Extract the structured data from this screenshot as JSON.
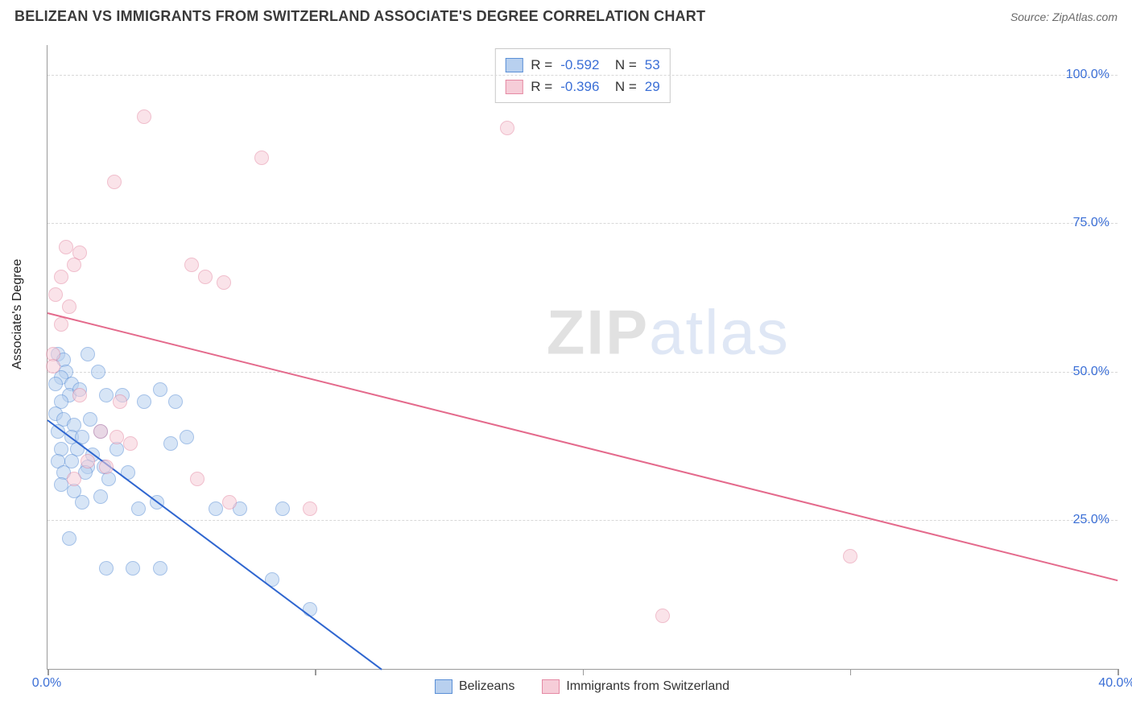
{
  "header": {
    "title": "BELIZEAN VS IMMIGRANTS FROM SWITZERLAND ASSOCIATE'S DEGREE CORRELATION CHART",
    "source": "Source: ZipAtlas.com"
  },
  "watermark": {
    "z": "ZIP",
    "rest": "atlas"
  },
  "chart": {
    "type": "scatter",
    "y_axis_title": "Associate's Degree",
    "xlim": [
      0,
      40
    ],
    "ylim": [
      0,
      105
    ],
    "x_ticks": [
      0,
      10,
      20,
      30,
      40
    ],
    "x_tick_labels": [
      "0.0%",
      "",
      "",
      "",
      "40.0%"
    ],
    "y_grid": [
      25,
      50,
      75,
      100
    ],
    "y_grid_labels": [
      "25.0%",
      "50.0%",
      "75.0%",
      "100.0%"
    ],
    "grid_color": "#d8d8d8",
    "axis_color": "#9a9a9a",
    "label_color": "#3b6fd6",
    "label_fontsize": 16,
    "background_color": "#ffffff",
    "marker_radius": 9,
    "marker_opacity": 0.55,
    "series": [
      {
        "name": "Belizeans",
        "color_fill": "#b8d0ef",
        "color_stroke": "#5a8fd6",
        "R": "-0.592",
        "N": "53",
        "trend": {
          "x1": 0,
          "y1": 42,
          "x2": 12.5,
          "y2": 0,
          "color": "#2f66d0",
          "width": 2
        },
        "points": [
          [
            0.4,
            53
          ],
          [
            0.6,
            52
          ],
          [
            0.7,
            50
          ],
          [
            0.5,
            49
          ],
          [
            0.3,
            48
          ],
          [
            0.9,
            48
          ],
          [
            1.5,
            53
          ],
          [
            0.8,
            46
          ],
          [
            0.5,
            45
          ],
          [
            1.2,
            47
          ],
          [
            2.2,
            46
          ],
          [
            4.2,
            47
          ],
          [
            4.8,
            45
          ],
          [
            0.3,
            43
          ],
          [
            0.6,
            42
          ],
          [
            1.0,
            41
          ],
          [
            1.6,
            42
          ],
          [
            0.4,
            40
          ],
          [
            0.9,
            39
          ],
          [
            1.3,
            39
          ],
          [
            2.0,
            40
          ],
          [
            0.5,
            37
          ],
          [
            1.1,
            37
          ],
          [
            1.7,
            36
          ],
          [
            2.6,
            37
          ],
          [
            0.4,
            35
          ],
          [
            0.9,
            35
          ],
          [
            1.5,
            34
          ],
          [
            2.1,
            34
          ],
          [
            4.6,
            38
          ],
          [
            5.2,
            39
          ],
          [
            0.6,
            33
          ],
          [
            1.4,
            33
          ],
          [
            2.3,
            32
          ],
          [
            3.0,
            33
          ],
          [
            0.5,
            31
          ],
          [
            1.0,
            30
          ],
          [
            2.0,
            29
          ],
          [
            1.3,
            28
          ],
          [
            0.8,
            22
          ],
          [
            3.4,
            27
          ],
          [
            4.1,
            28
          ],
          [
            2.2,
            17
          ],
          [
            3.2,
            17
          ],
          [
            4.2,
            17
          ],
          [
            6.3,
            27
          ],
          [
            7.2,
            27
          ],
          [
            8.4,
            15
          ],
          [
            9.8,
            10
          ],
          [
            8.8,
            27
          ],
          [
            2.8,
            46
          ],
          [
            3.6,
            45
          ],
          [
            1.9,
            50
          ]
        ]
      },
      {
        "name": "Immigrants from Switzerland",
        "color_fill": "#f6cdd8",
        "color_stroke": "#e58aa4",
        "R": "-0.396",
        "N": "29",
        "trend": {
          "x1": 0,
          "y1": 60,
          "x2": 40,
          "y2": 15,
          "color": "#e46a8c",
          "width": 2
        },
        "points": [
          [
            3.6,
            93
          ],
          [
            17.2,
            91
          ],
          [
            8.0,
            86
          ],
          [
            2.5,
            82
          ],
          [
            0.7,
            71
          ],
          [
            1.2,
            70
          ],
          [
            1.0,
            68
          ],
          [
            0.5,
            66
          ],
          [
            5.4,
            68
          ],
          [
            5.9,
            66
          ],
          [
            6.6,
            65
          ],
          [
            0.3,
            63
          ],
          [
            0.8,
            61
          ],
          [
            0.2,
            53
          ],
          [
            0.2,
            51
          ],
          [
            1.2,
            46
          ],
          [
            2.7,
            45
          ],
          [
            2.0,
            40
          ],
          [
            2.6,
            39
          ],
          [
            3.1,
            38
          ],
          [
            1.5,
            35
          ],
          [
            2.2,
            34
          ],
          [
            1.0,
            32
          ],
          [
            5.6,
            32
          ],
          [
            6.8,
            28
          ],
          [
            9.8,
            27
          ],
          [
            30.0,
            19
          ],
          [
            23.0,
            9
          ],
          [
            0.5,
            58
          ]
        ]
      }
    ],
    "legend_bottom": [
      {
        "label": "Belizeans",
        "fill": "#b8d0ef",
        "stroke": "#5a8fd6"
      },
      {
        "label": "Immigrants from Switzerland",
        "fill": "#f6cdd8",
        "stroke": "#e58aa4"
      }
    ]
  }
}
